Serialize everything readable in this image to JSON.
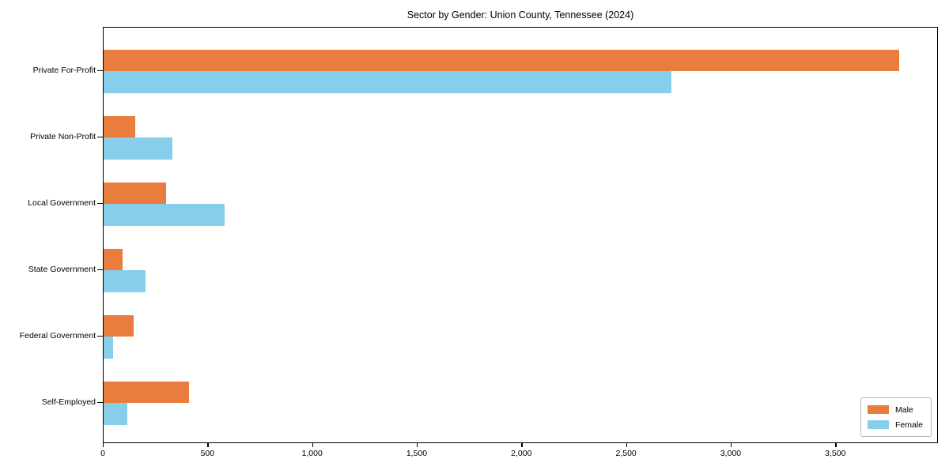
{
  "chart_data": {
    "type": "bar",
    "orientation": "horizontal",
    "title": "Sector by Gender: Union County, Tennessee (2024)",
    "categories": [
      "Private For-Profit",
      "Private Non-Profit",
      "Local Government",
      "State Government",
      "Federal Government",
      "Self-Employed"
    ],
    "series": [
      {
        "name": "Male",
        "color": "#E87D3E",
        "values": [
          3800,
          150,
          300,
          92,
          142,
          408
        ]
      },
      {
        "name": "Female",
        "color": "#87CEEB",
        "values": [
          2712,
          330,
          577,
          200,
          44,
          112
        ]
      }
    ],
    "xlabel": "",
    "ylabel": "",
    "xlim": [
      0,
      3990
    ],
    "xticks": [
      0,
      500,
      1000,
      1500,
      2000,
      2500,
      3000,
      3500
    ],
    "xtick_labels": [
      "0",
      "500",
      "1,000",
      "1,500",
      "2,000",
      "2,500",
      "3,000",
      "3,500"
    ],
    "grid": false,
    "legend": {
      "position": "lower right"
    },
    "axis_color": "#000000",
    "text_color": "#000000"
  }
}
